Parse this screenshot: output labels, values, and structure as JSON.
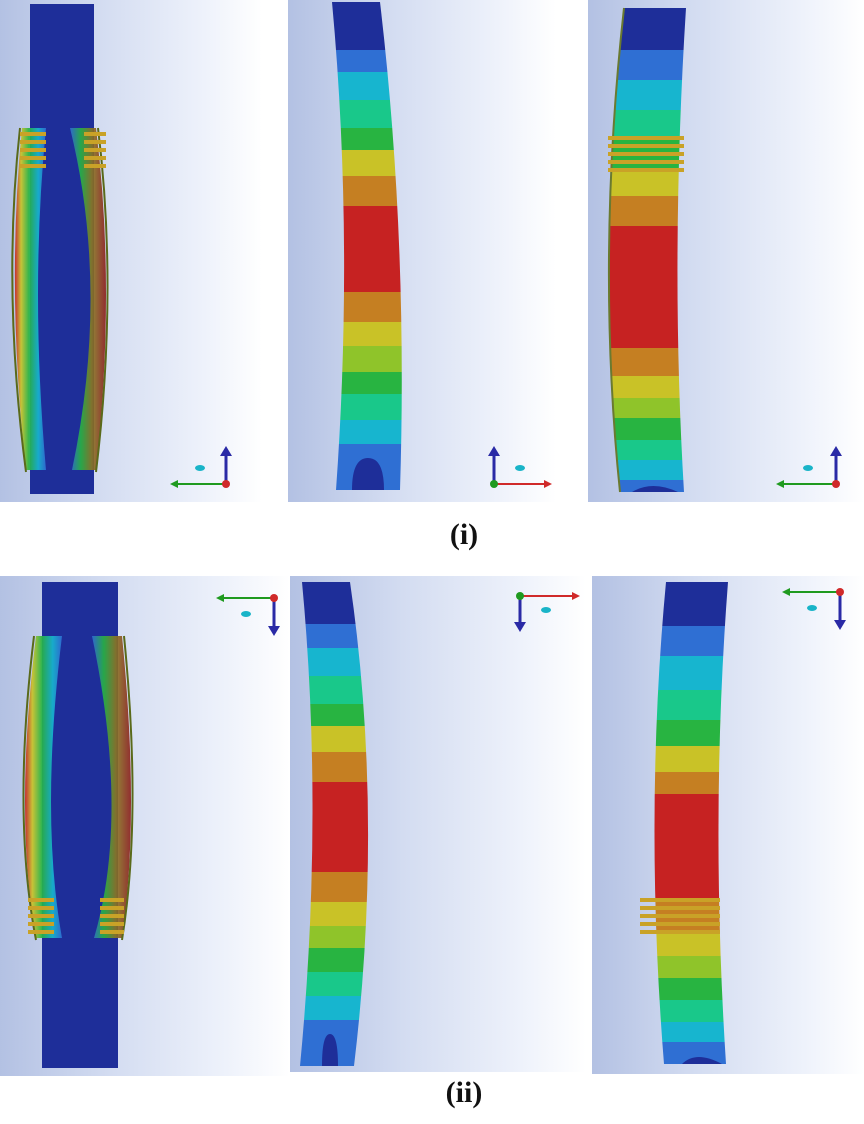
{
  "figure": {
    "rows": [
      {
        "label": "(i)",
        "orientation": "up"
      },
      {
        "label": "(ii)",
        "orientation": "down"
      }
    ]
  },
  "contour_colors": [
    "#1e2e99",
    "#2f6fd3",
    "#17b5cf",
    "#19c88a",
    "#28b441",
    "#8fc42a",
    "#c9c227",
    "#c57f22",
    "#c62222"
  ],
  "triad_colors": {
    "vertical": "#2a2aa6",
    "horizontal_green": "#1f9a1f",
    "horizontal_red": "#d02a2a",
    "origin": "#d02a2a",
    "marker": "#19b4c8"
  }
}
